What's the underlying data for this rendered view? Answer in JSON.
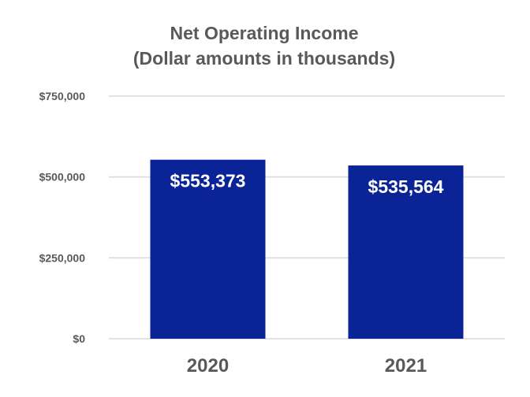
{
  "chart_data": {
    "type": "bar",
    "title": "Net Operating Income",
    "subtitle": "(Dollar amounts in thousands)",
    "categories": [
      "2020",
      "2021"
    ],
    "values": [
      553373,
      535564
    ],
    "data_labels": [
      "$553,373",
      "$535,564"
    ],
    "ylim": [
      0,
      750000
    ],
    "y_ticks": [
      0,
      250000,
      500000,
      750000
    ],
    "y_tick_labels": [
      "$0",
      "$250,000",
      "$500,000",
      "$750,000"
    ],
    "grid": true,
    "legend": "none",
    "bar_color": "#0a2396",
    "text_color": "#595959"
  }
}
